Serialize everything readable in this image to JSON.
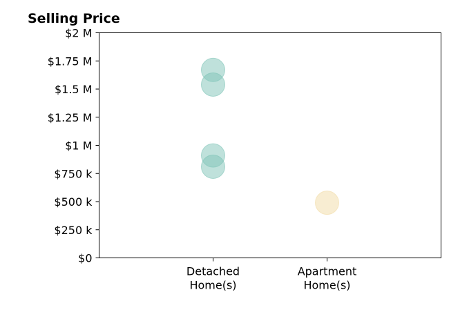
{
  "chart_data": {
    "type": "scatter",
    "title": "Selling Price",
    "xlabel": "",
    "ylabel": "",
    "ylim": [
      0,
      2000000
    ],
    "grid": false,
    "categories": [
      [
        "Detached",
        "Home(s)"
      ],
      [
        "Apartment",
        "Home(s)"
      ]
    ],
    "yticks": [
      {
        "value": 0,
        "label": "$0"
      },
      {
        "value": 250000,
        "label": "$250 k"
      },
      {
        "value": 500000,
        "label": "$500 k"
      },
      {
        "value": 750000,
        "label": "$750 k"
      },
      {
        "value": 1000000,
        "label": "$1 M"
      },
      {
        "value": 1250000,
        "label": "$1.25 M"
      },
      {
        "value": 1500000,
        "label": "$1.5 M"
      },
      {
        "value": 1750000,
        "label": "$1.75 M"
      },
      {
        "value": 2000000,
        "label": "$2 M"
      }
    ],
    "points": [
      {
        "category": 0,
        "value": 1670000,
        "color": "#7fc4b8"
      },
      {
        "category": 0,
        "value": 1540000,
        "color": "#7fc4b8"
      },
      {
        "category": 0,
        "value": 910000,
        "color": "#7fc4b8"
      },
      {
        "category": 0,
        "value": 810000,
        "color": "#7fc4b8"
      },
      {
        "category": 1,
        "value": 490000,
        "color": "#f2dca6"
      }
    ]
  }
}
